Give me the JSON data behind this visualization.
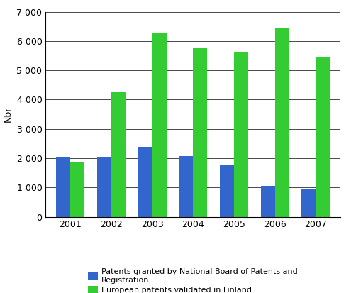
{
  "years": [
    2001,
    2002,
    2003,
    2004,
    2005,
    2006,
    2007
  ],
  "blue_values": [
    2050,
    2050,
    2380,
    2080,
    1750,
    1050,
    950
  ],
  "green_values": [
    1850,
    4250,
    6250,
    5750,
    5600,
    6450,
    5450
  ],
  "blue_color": "#3366CC",
  "green_color": "#33CC33",
  "ylabel": "Nbr",
  "ylim": [
    0,
    7000
  ],
  "yticks": [
    0,
    1000,
    2000,
    3000,
    4000,
    5000,
    6000,
    7000
  ],
  "ytick_labels": [
    "0",
    "1 000",
    "2 000",
    "3 000",
    "4 000",
    "5 000",
    "6 000",
    "7 000"
  ],
  "legend_blue": "Patents granted by National Board of Patents and\nRegistration",
  "legend_green": "European patents validated in Finland",
  "bar_width": 0.35,
  "background_color": "#ffffff",
  "border_color": "#000000"
}
